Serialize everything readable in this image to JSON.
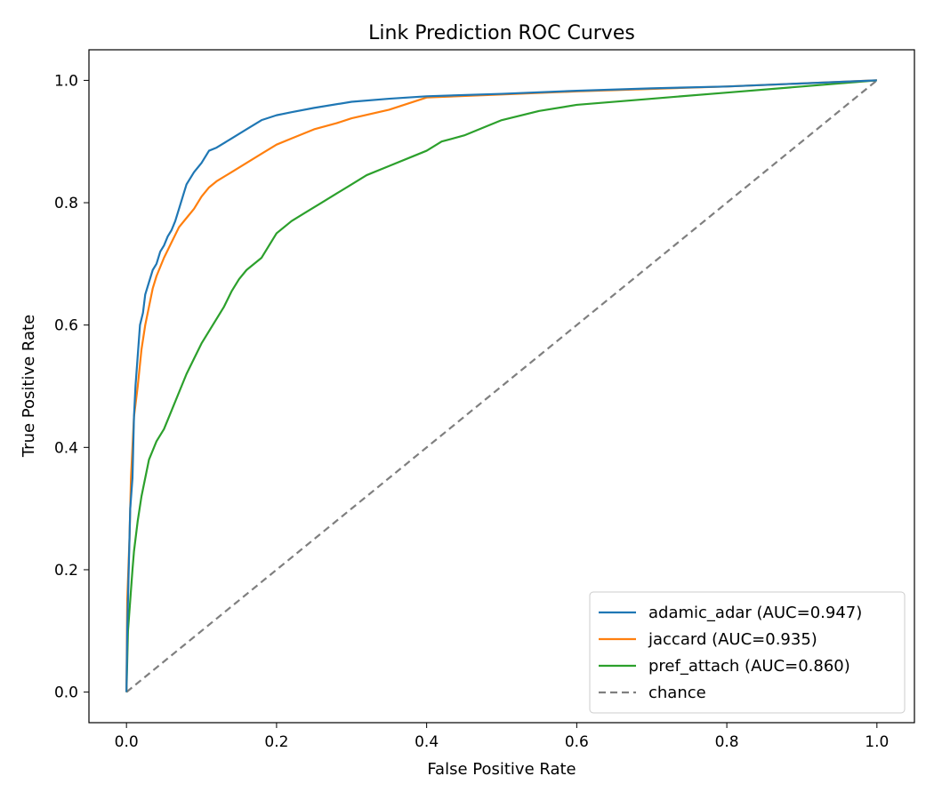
{
  "chart_data": {
    "type": "line",
    "title": "Link Prediction ROC Curves",
    "xlabel": "False Positive Rate",
    "ylabel": "True Positive Rate",
    "xlim": [
      -0.05,
      1.05
    ],
    "ylim": [
      -0.05,
      1.05
    ],
    "xticks": [
      0.0,
      0.2,
      0.4,
      0.6,
      0.8,
      1.0
    ],
    "yticks": [
      0.0,
      0.2,
      0.4,
      0.6,
      0.8,
      1.0
    ],
    "xtick_labels": [
      "0.0",
      "0.2",
      "0.4",
      "0.6",
      "0.8",
      "1.0"
    ],
    "ytick_labels": [
      "0.0",
      "0.2",
      "0.4",
      "0.6",
      "0.8",
      "1.0"
    ],
    "grid": false,
    "legend_position": "lower-right",
    "series": [
      {
        "name": "adamic_adar (AUC=0.947)",
        "color": "#1f77b4",
        "dash": "solid",
        "points": [
          [
            0.0,
            0.0
          ],
          [
            0.001,
            0.1
          ],
          [
            0.003,
            0.2
          ],
          [
            0.005,
            0.3
          ],
          [
            0.008,
            0.35
          ],
          [
            0.01,
            0.45
          ],
          [
            0.012,
            0.5
          ],
          [
            0.015,
            0.55
          ],
          [
            0.018,
            0.6
          ],
          [
            0.022,
            0.62
          ],
          [
            0.025,
            0.65
          ],
          [
            0.03,
            0.67
          ],
          [
            0.035,
            0.69
          ],
          [
            0.04,
            0.7
          ],
          [
            0.045,
            0.72
          ],
          [
            0.05,
            0.73
          ],
          [
            0.055,
            0.745
          ],
          [
            0.06,
            0.755
          ],
          [
            0.065,
            0.77
          ],
          [
            0.07,
            0.79
          ],
          [
            0.075,
            0.81
          ],
          [
            0.08,
            0.83
          ],
          [
            0.09,
            0.85
          ],
          [
            0.1,
            0.865
          ],
          [
            0.11,
            0.885
          ],
          [
            0.12,
            0.89
          ],
          [
            0.14,
            0.905
          ],
          [
            0.16,
            0.92
          ],
          [
            0.18,
            0.935
          ],
          [
            0.2,
            0.943
          ],
          [
            0.22,
            0.948
          ],
          [
            0.25,
            0.955
          ],
          [
            0.3,
            0.965
          ],
          [
            0.35,
            0.97
          ],
          [
            0.4,
            0.974
          ],
          [
            0.5,
            0.978
          ],
          [
            0.6,
            0.983
          ],
          [
            0.7,
            0.987
          ],
          [
            0.8,
            0.99
          ],
          [
            0.9,
            0.995
          ],
          [
            1.0,
            1.0
          ]
        ]
      },
      {
        "name": "jaccard (AUC=0.935)",
        "color": "#ff7f0e",
        "dash": "solid",
        "points": [
          [
            0.0,
            0.0
          ],
          [
            0.001,
            0.15
          ],
          [
            0.004,
            0.25
          ],
          [
            0.006,
            0.35
          ],
          [
            0.01,
            0.45
          ],
          [
            0.015,
            0.5
          ],
          [
            0.02,
            0.56
          ],
          [
            0.025,
            0.6
          ],
          [
            0.03,
            0.63
          ],
          [
            0.035,
            0.66
          ],
          [
            0.04,
            0.68
          ],
          [
            0.05,
            0.71
          ],
          [
            0.06,
            0.735
          ],
          [
            0.07,
            0.76
          ],
          [
            0.08,
            0.775
          ],
          [
            0.09,
            0.79
          ],
          [
            0.1,
            0.81
          ],
          [
            0.11,
            0.825
          ],
          [
            0.12,
            0.835
          ],
          [
            0.14,
            0.85
          ],
          [
            0.16,
            0.865
          ],
          [
            0.18,
            0.88
          ],
          [
            0.2,
            0.895
          ],
          [
            0.22,
            0.905
          ],
          [
            0.25,
            0.92
          ],
          [
            0.28,
            0.93
          ],
          [
            0.3,
            0.938
          ],
          [
            0.35,
            0.952
          ],
          [
            0.4,
            0.972
          ],
          [
            0.5,
            0.977
          ],
          [
            0.6,
            0.982
          ],
          [
            0.7,
            0.986
          ],
          [
            0.8,
            0.99
          ],
          [
            0.9,
            0.995
          ],
          [
            1.0,
            1.0
          ]
        ]
      },
      {
        "name": "pref_attach (AUC=0.860)",
        "color": "#2ca02c",
        "dash": "solid",
        "points": [
          [
            0.0,
            0.0
          ],
          [
            0.002,
            0.1
          ],
          [
            0.005,
            0.15
          ],
          [
            0.008,
            0.2
          ],
          [
            0.01,
            0.23
          ],
          [
            0.015,
            0.28
          ],
          [
            0.02,
            0.32
          ],
          [
            0.025,
            0.35
          ],
          [
            0.03,
            0.38
          ],
          [
            0.04,
            0.41
          ],
          [
            0.05,
            0.43
          ],
          [
            0.06,
            0.46
          ],
          [
            0.07,
            0.49
          ],
          [
            0.08,
            0.52
          ],
          [
            0.09,
            0.545
          ],
          [
            0.1,
            0.57
          ],
          [
            0.11,
            0.59
          ],
          [
            0.12,
            0.61
          ],
          [
            0.13,
            0.63
          ],
          [
            0.14,
            0.655
          ],
          [
            0.15,
            0.675
          ],
          [
            0.16,
            0.69
          ],
          [
            0.17,
            0.7
          ],
          [
            0.18,
            0.71
          ],
          [
            0.19,
            0.73
          ],
          [
            0.2,
            0.75
          ],
          [
            0.22,
            0.77
          ],
          [
            0.24,
            0.785
          ],
          [
            0.26,
            0.8
          ],
          [
            0.28,
            0.815
          ],
          [
            0.3,
            0.83
          ],
          [
            0.32,
            0.845
          ],
          [
            0.35,
            0.86
          ],
          [
            0.38,
            0.875
          ],
          [
            0.4,
            0.885
          ],
          [
            0.42,
            0.9
          ],
          [
            0.45,
            0.91
          ],
          [
            0.48,
            0.925
          ],
          [
            0.5,
            0.935
          ],
          [
            0.55,
            0.95
          ],
          [
            0.6,
            0.96
          ],
          [
            0.7,
            0.97
          ],
          [
            0.8,
            0.98
          ],
          [
            0.9,
            0.99
          ],
          [
            1.0,
            1.0
          ]
        ]
      },
      {
        "name": "chance",
        "color": "#7f7f7f",
        "dash": "dashed",
        "points": [
          [
            0.0,
            0.0
          ],
          [
            1.0,
            1.0
          ]
        ]
      }
    ]
  }
}
